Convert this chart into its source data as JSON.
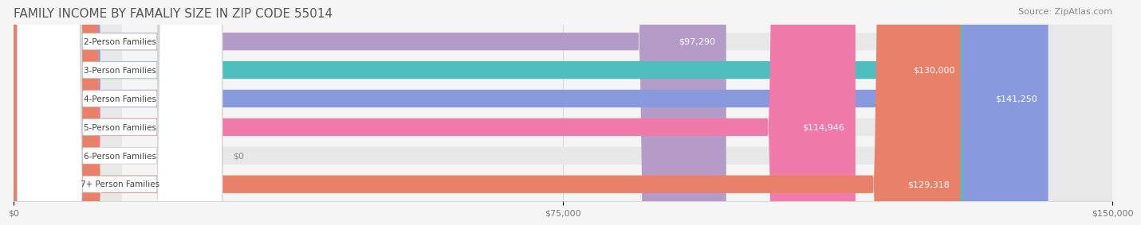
{
  "title": "FAMILY INCOME BY FAMALIY SIZE IN ZIP CODE 55014",
  "source": "Source: ZipAtlas.com",
  "categories": [
    "2-Person Families",
    "3-Person Families",
    "4-Person Families",
    "5-Person Families",
    "6-Person Families",
    "7+ Person Families"
  ],
  "values": [
    97290,
    130000,
    141250,
    114946,
    0,
    129318
  ],
  "bar_colors": [
    "#b59bc8",
    "#4dbfbf",
    "#8899dd",
    "#f07aaa",
    "#f5cba0",
    "#e8806a"
  ],
  "label_colors": [
    "#b59bc8",
    "#4dbfbf",
    "#8899aa",
    "#f07aaa",
    "#f5cba0",
    "#e8806a"
  ],
  "xlim": [
    0,
    150000
  ],
  "xtick_values": [
    0,
    75000,
    150000
  ],
  "xtick_labels": [
    "$0",
    "$75,000",
    "$150,000"
  ],
  "bar_height": 0.62,
  "background_color": "#f5f5f5",
  "title_fontsize": 11,
  "source_fontsize": 8,
  "value_label_color": "#ffffff",
  "value_label_fontsize": 8
}
